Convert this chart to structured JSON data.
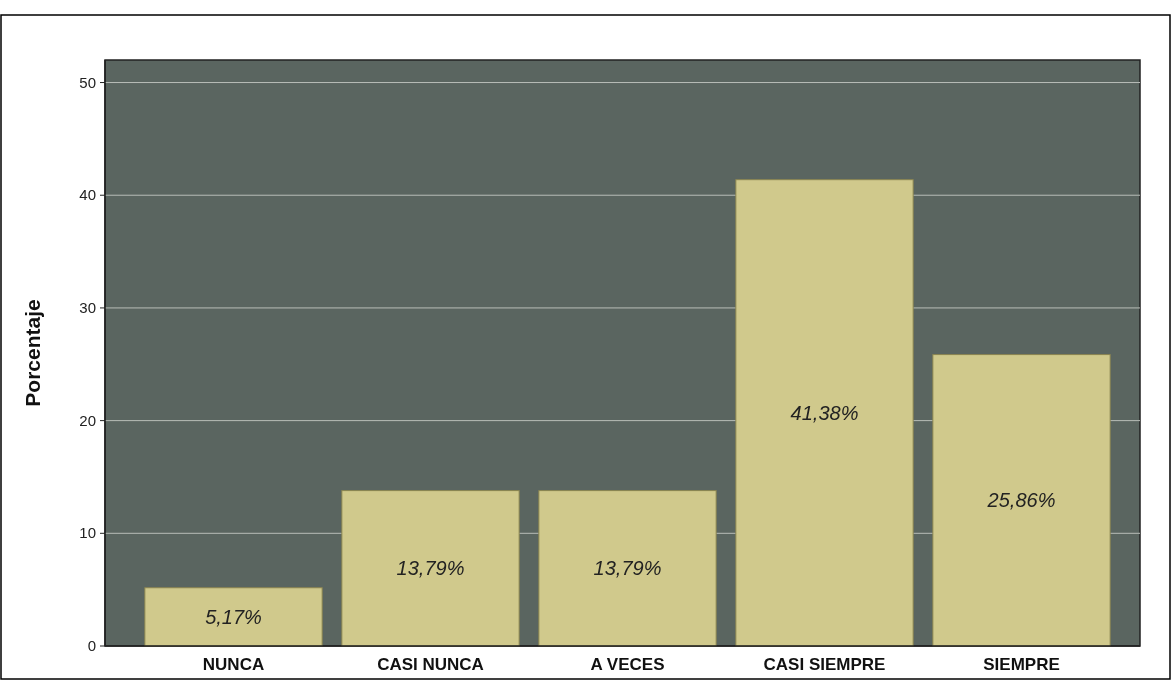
{
  "chart_data": {
    "type": "bar",
    "ylabel": "Porcentaje",
    "categories": [
      "NUNCA",
      "CASI NUNCA",
      "A VECES",
      "CASI SIEMPRE",
      "SIEMPRE"
    ],
    "values": [
      5.17,
      13.79,
      13.79,
      41.38,
      25.86
    ],
    "value_labels": [
      "5,17%",
      "13,79%",
      "13,79%",
      "41,38%",
      "25,86%"
    ],
    "color": "#d0c98c",
    "ylim": [
      0,
      52
    ],
    "yticks": [
      0,
      10,
      20,
      30,
      40,
      50
    ],
    "grid": "y"
  }
}
